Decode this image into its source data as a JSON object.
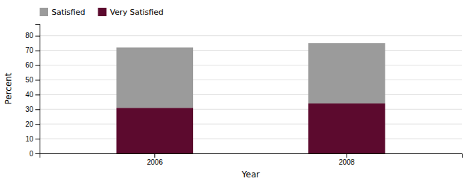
{
  "chart_data": {
    "type": "bar",
    "stacked": true,
    "categories": [
      "2006",
      "2008"
    ],
    "series": [
      {
        "name": "Very Satisfied",
        "color": "#5C0A2E",
        "values": [
          31,
          34
        ]
      },
      {
        "name": "Satisfied",
        "color": "#9B9B9B",
        "values": [
          41,
          41
        ]
      }
    ],
    "xlabel": "Year",
    "ylabel": "Percent",
    "ylim": [
      0,
      88
    ],
    "yticks": [
      0,
      10,
      20,
      30,
      40,
      50,
      60,
      70,
      80
    ],
    "grid": true,
    "legend": "upper left"
  }
}
